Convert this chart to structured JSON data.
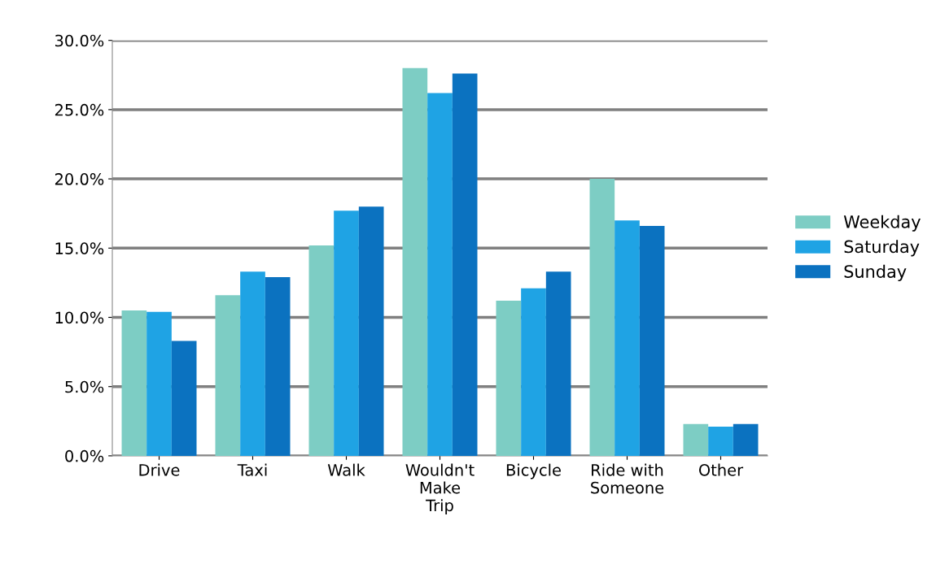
{
  "chart_data": {
    "type": "bar",
    "categories": [
      "Drive",
      "Taxi",
      "Walk",
      "Wouldn't\nMake\nTrip",
      "Bicycle",
      "Ride with\nSomeone",
      "Other"
    ],
    "series": [
      {
        "name": "Weekday",
        "color": "#7dcdc4",
        "values": [
          10.5,
          11.6,
          15.2,
          28.0,
          11.2,
          20.0,
          2.3
        ]
      },
      {
        "name": "Saturday",
        "color": "#1fa3e4",
        "values": [
          10.4,
          13.3,
          17.7,
          26.2,
          12.1,
          17.0,
          2.1
        ]
      },
      {
        "name": "Sunday",
        "color": "#0b72c0",
        "values": [
          8.3,
          12.9,
          18.0,
          27.6,
          13.3,
          16.6,
          2.3
        ]
      }
    ],
    "ylim": [
      0,
      30
    ],
    "yticks": [
      {
        "value": 0,
        "label": "0.0%"
      },
      {
        "value": 5,
        "label": "5.0%"
      },
      {
        "value": 10,
        "label": "10.0%"
      },
      {
        "value": 15,
        "label": "15.0%"
      },
      {
        "value": 20,
        "label": "20.0%"
      },
      {
        "value": 25,
        "label": "25.0%"
      },
      {
        "value": 30,
        "label": "30.0%"
      }
    ],
    "grid": "y",
    "legend": "right"
  }
}
